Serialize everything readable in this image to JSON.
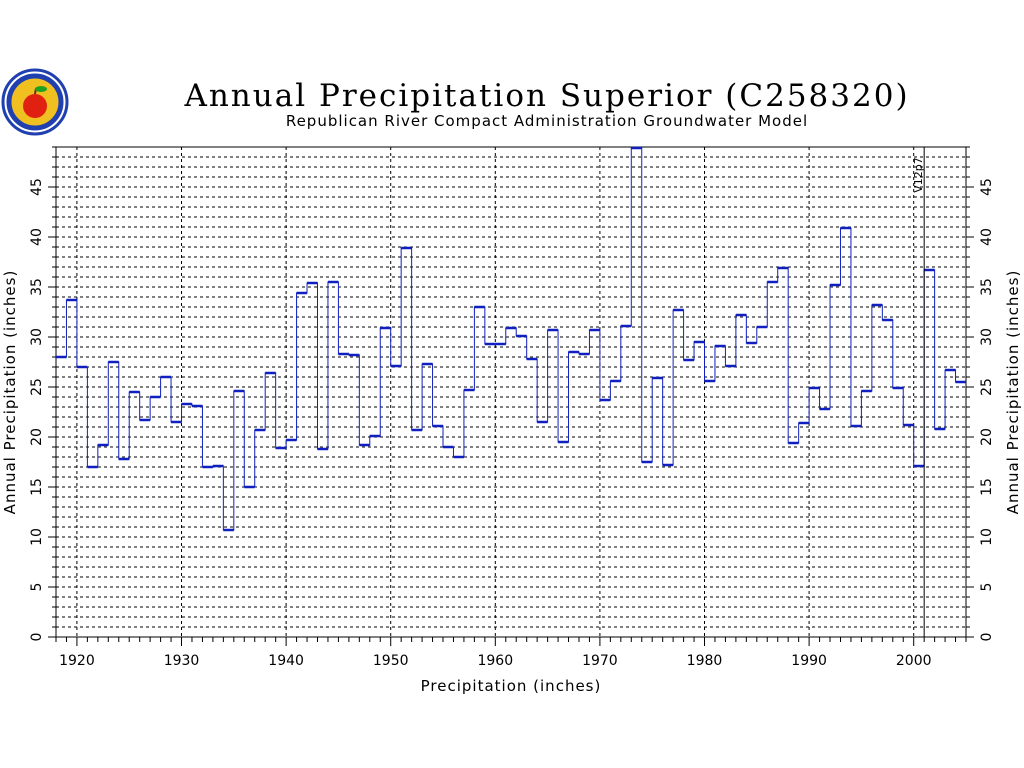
{
  "colors": {
    "series": "#1020c0",
    "grid": "#000000",
    "background": "#ffffff",
    "logo_ring": "#2040b0",
    "logo_fill": "#f0c020",
    "apple": "#e02010",
    "leaf": "#20a020"
  },
  "chart_data": {
    "type": "line",
    "step": true,
    "title": "Annual Precipitation Superior (C258320)",
    "subtitle": "Republican River Compact Administration Groundwater Model",
    "xlabel": "Precipitation (inches)",
    "ylabel": "Annual Precipitation (inches)",
    "xlim": [
      1918,
      2005
    ],
    "ylim": [
      0,
      49
    ],
    "x_ticks": [
      1920,
      1930,
      1940,
      1950,
      1960,
      1970,
      1980,
      1990,
      2000
    ],
    "y_ticks": [
      0,
      5,
      10,
      15,
      20,
      25,
      30,
      35,
      40,
      45
    ],
    "grid": true,
    "annotations": [
      {
        "x": 2001,
        "text": "V12p7"
      }
    ],
    "x": [
      1918,
      1919,
      1920,
      1921,
      1922,
      1923,
      1924,
      1925,
      1926,
      1927,
      1928,
      1929,
      1930,
      1931,
      1932,
      1933,
      1934,
      1935,
      1936,
      1937,
      1938,
      1939,
      1940,
      1941,
      1942,
      1943,
      1944,
      1945,
      1946,
      1947,
      1948,
      1949,
      1950,
      1951,
      1952,
      1953,
      1954,
      1955,
      1956,
      1957,
      1958,
      1959,
      1960,
      1961,
      1962,
      1963,
      1964,
      1965,
      1966,
      1967,
      1968,
      1969,
      1970,
      1971,
      1972,
      1973,
      1974,
      1975,
      1976,
      1977,
      1978,
      1979,
      1980,
      1981,
      1982,
      1983,
      1984,
      1985,
      1986,
      1987,
      1988,
      1989,
      1990,
      1991,
      1992,
      1993,
      1994,
      1995,
      1996,
      1997,
      1998,
      1999,
      2000,
      2001,
      2002,
      2003,
      2004
    ],
    "values": [
      28,
      33.7,
      27,
      17,
      19.2,
      27.5,
      17.8,
      24.5,
      21.7,
      24,
      26,
      21.5,
      23.3,
      23.1,
      17,
      17.1,
      10.7,
      24.6,
      15,
      20.7,
      26.4,
      18.9,
      19.7,
      34.4,
      35.4,
      18.8,
      35.5,
      28.3,
      28.2,
      19.2,
      20.1,
      30.9,
      27.1,
      38.9,
      20.7,
      27.3,
      21.1,
      19,
      18,
      24.7,
      33,
      29.3,
      29.3,
      30.9,
      30.1,
      27.8,
      21.5,
      30.7,
      19.5,
      28.5,
      28.3,
      30.7,
      23.7,
      25.6,
      31.1,
      48.9,
      17.5,
      25.9,
      17.2,
      32.7,
      27.7,
      29.5,
      25.6,
      29.1,
      27.1,
      32.2,
      29.4,
      31,
      35.5,
      36.9,
      19.4,
      21.4,
      24.9,
      22.8,
      35.2,
      40.9,
      21.1,
      24.6,
      33.2,
      31.7,
      24.9,
      21.2,
      17.1,
      36.7,
      20.8,
      26.7,
      25.5
    ]
  }
}
